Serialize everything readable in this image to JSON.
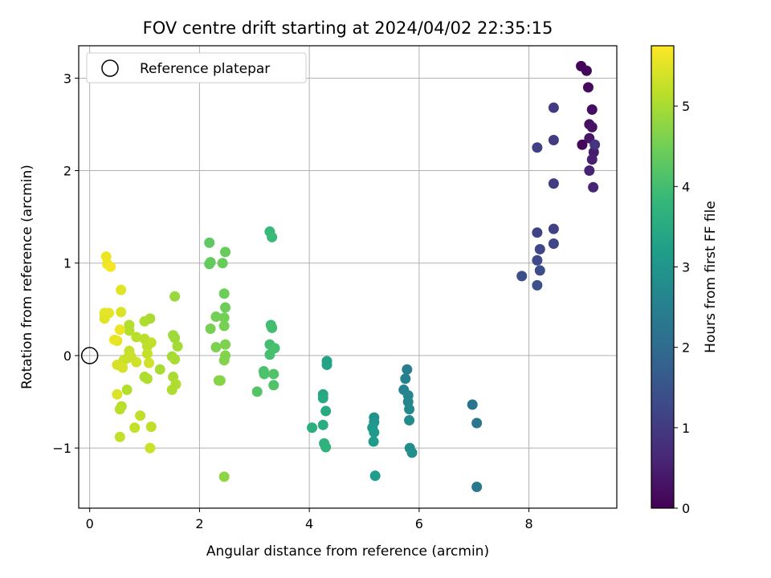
{
  "chart_data": {
    "type": "scatter",
    "title": "FOV centre drift starting at 2024/04/02 22:35:15",
    "xlabel": "Angular distance from reference (arcmin)",
    "ylabel": "Rotation from reference (arcmin)",
    "xlim": [
      -0.2,
      9.6
    ],
    "ylim": [
      -1.65,
      3.35
    ],
    "x_ticks": [
      0,
      2,
      4,
      6,
      8
    ],
    "y_ticks": [
      -1,
      0,
      1,
      2,
      3
    ],
    "x_tick_labels": [
      "0",
      "2",
      "4",
      "6",
      "8"
    ],
    "y_tick_labels": [
      "−1",
      "0",
      "1",
      "2",
      "3"
    ],
    "grid": true,
    "legend": {
      "placement": "top-left",
      "label": "Reference platepar"
    },
    "reference_point": {
      "x": 0,
      "y": 0
    },
    "colorbar": {
      "label": "Hours from first FF file",
      "range": [
        0,
        5.75
      ],
      "ticks": [
        0,
        1,
        2,
        3,
        4,
        5
      ],
      "tick_labels": [
        "0",
        "1",
        "2",
        "3",
        "4",
        "5"
      ],
      "colormap": [
        "#440154",
        "#482878",
        "#3e4989",
        "#31688e",
        "#26828e",
        "#1f9e89",
        "#35b779",
        "#6ece58",
        "#b5de2b",
        "#fde725"
      ]
    },
    "points": [
      {
        "x": 8.95,
        "y": 3.13,
        "h": 0.05
      },
      {
        "x": 9.05,
        "y": 3.08,
        "h": 0.1
      },
      {
        "x": 9.08,
        "y": 2.9,
        "h": 0.15
      },
      {
        "x": 9.15,
        "y": 2.66,
        "h": 0.2
      },
      {
        "x": 9.1,
        "y": 2.5,
        "h": 0.25
      },
      {
        "x": 9.15,
        "y": 2.47,
        "h": 0.3
      },
      {
        "x": 9.1,
        "y": 2.35,
        "h": 0.35
      },
      {
        "x": 8.97,
        "y": 2.28,
        "h": 0.1
      },
      {
        "x": 9.18,
        "y": 2.2,
        "h": 0.45
      },
      {
        "x": 9.15,
        "y": 2.12,
        "h": 0.5
      },
      {
        "x": 9.1,
        "y": 2.0,
        "h": 0.55
      },
      {
        "x": 9.17,
        "y": 1.82,
        "h": 0.6
      },
      {
        "x": 9.2,
        "y": 2.28,
        "h": 0.9
      },
      {
        "x": 8.45,
        "y": 2.68,
        "h": 1.0
      },
      {
        "x": 8.45,
        "y": 2.33,
        "h": 1.05
      },
      {
        "x": 8.15,
        "y": 2.25,
        "h": 1.1
      },
      {
        "x": 8.45,
        "y": 1.86,
        "h": 1.05
      },
      {
        "x": 8.45,
        "y": 1.37,
        "h": 1.1
      },
      {
        "x": 8.15,
        "y": 1.33,
        "h": 1.15
      },
      {
        "x": 8.45,
        "y": 1.21,
        "h": 1.2
      },
      {
        "x": 8.2,
        "y": 1.15,
        "h": 1.25
      },
      {
        "x": 8.15,
        "y": 1.03,
        "h": 1.3
      },
      {
        "x": 8.2,
        "y": 0.92,
        "h": 1.35
      },
      {
        "x": 7.87,
        "y": 0.86,
        "h": 1.4
      },
      {
        "x": 8.15,
        "y": 0.76,
        "h": 1.45
      },
      {
        "x": 6.97,
        "y": -0.53,
        "h": 2.2
      },
      {
        "x": 7.05,
        "y": -0.73,
        "h": 2.25
      },
      {
        "x": 7.05,
        "y": -1.42,
        "h": 2.3
      },
      {
        "x": 5.78,
        "y": -0.15,
        "h": 2.45
      },
      {
        "x": 5.75,
        "y": -0.25,
        "h": 2.5
      },
      {
        "x": 5.72,
        "y": -0.37,
        "h": 2.55
      },
      {
        "x": 5.8,
        "y": -0.43,
        "h": 2.6
      },
      {
        "x": 5.8,
        "y": -0.5,
        "h": 2.65
      },
      {
        "x": 5.82,
        "y": -0.58,
        "h": 2.7
      },
      {
        "x": 5.82,
        "y": -0.7,
        "h": 2.75
      },
      {
        "x": 5.83,
        "y": -1.0,
        "h": 2.8
      },
      {
        "x": 5.87,
        "y": -1.05,
        "h": 2.85
      },
      {
        "x": 5.18,
        "y": -0.67,
        "h": 2.95
      },
      {
        "x": 5.18,
        "y": -0.72,
        "h": 3.0
      },
      {
        "x": 5.15,
        "y": -0.78,
        "h": 3.05
      },
      {
        "x": 5.18,
        "y": -0.83,
        "h": 3.1
      },
      {
        "x": 5.17,
        "y": -0.93,
        "h": 3.15
      },
      {
        "x": 5.2,
        "y": -1.3,
        "h": 3.2
      },
      {
        "x": 4.32,
        "y": -0.06,
        "h": 3.3
      },
      {
        "x": 4.32,
        "y": -0.1,
        "h": 3.35
      },
      {
        "x": 4.25,
        "y": -0.42,
        "h": 3.4
      },
      {
        "x": 4.25,
        "y": -0.46,
        "h": 3.45
      },
      {
        "x": 4.3,
        "y": -0.6,
        "h": 3.5
      },
      {
        "x": 4.25,
        "y": -0.75,
        "h": 3.55
      },
      {
        "x": 4.05,
        "y": -0.78,
        "h": 3.6
      },
      {
        "x": 4.27,
        "y": -0.95,
        "h": 3.65
      },
      {
        "x": 4.3,
        "y": -0.99,
        "h": 3.7
      },
      {
        "x": 3.28,
        "y": 1.34,
        "h": 3.85
      },
      {
        "x": 3.32,
        "y": 1.28,
        "h": 3.9
      },
      {
        "x": 3.3,
        "y": 0.33,
        "h": 3.95
      },
      {
        "x": 3.32,
        "y": 0.3,
        "h": 4.0
      },
      {
        "x": 3.28,
        "y": 0.12,
        "h": 4.0
      },
      {
        "x": 3.37,
        "y": 0.08,
        "h": 4.05
      },
      {
        "x": 3.28,
        "y": 0.01,
        "h": 4.05
      },
      {
        "x": 3.17,
        "y": -0.17,
        "h": 4.1
      },
      {
        "x": 3.18,
        "y": -0.2,
        "h": 4.1
      },
      {
        "x": 3.35,
        "y": -0.2,
        "h": 4.15
      },
      {
        "x": 3.35,
        "y": -0.32,
        "h": 4.15
      },
      {
        "x": 3.05,
        "y": -0.39,
        "h": 4.2
      },
      {
        "x": 2.18,
        "y": 1.22,
        "h": 4.3
      },
      {
        "x": 2.2,
        "y": 1.01,
        "h": 4.35
      },
      {
        "x": 2.18,
        "y": 0.99,
        "h": 4.35
      },
      {
        "x": 2.47,
        "y": 1.12,
        "h": 4.4
      },
      {
        "x": 2.42,
        "y": 1.0,
        "h": 4.4
      },
      {
        "x": 2.45,
        "y": 0.67,
        "h": 4.45
      },
      {
        "x": 2.47,
        "y": 0.52,
        "h": 4.45
      },
      {
        "x": 2.3,
        "y": 0.42,
        "h": 4.5
      },
      {
        "x": 2.45,
        "y": 0.41,
        "h": 4.5
      },
      {
        "x": 2.45,
        "y": 0.32,
        "h": 4.55
      },
      {
        "x": 2.2,
        "y": 0.29,
        "h": 4.55
      },
      {
        "x": 2.47,
        "y": 0.12,
        "h": 4.6
      },
      {
        "x": 2.3,
        "y": 0.09,
        "h": 4.6
      },
      {
        "x": 2.47,
        "y": 0.0,
        "h": 4.65
      },
      {
        "x": 2.45,
        "y": -0.05,
        "h": 4.65
      },
      {
        "x": 2.35,
        "y": -0.27,
        "h": 4.7
      },
      {
        "x": 2.38,
        "y": -0.27,
        "h": 4.7
      },
      {
        "x": 2.45,
        "y": -1.31,
        "h": 4.75
      },
      {
        "x": 1.55,
        "y": 0.64,
        "h": 4.85
      },
      {
        "x": 1.52,
        "y": 0.22,
        "h": 4.9
      },
      {
        "x": 1.55,
        "y": 0.19,
        "h": 4.9
      },
      {
        "x": 1.6,
        "y": 0.1,
        "h": 4.95
      },
      {
        "x": 1.5,
        "y": -0.01,
        "h": 4.95
      },
      {
        "x": 1.55,
        "y": -0.04,
        "h": 5.0
      },
      {
        "x": 1.52,
        "y": -0.23,
        "h": 5.0
      },
      {
        "x": 1.57,
        "y": -0.31,
        "h": 5.05
      },
      {
        "x": 1.5,
        "y": -0.37,
        "h": 5.05
      },
      {
        "x": 1.1,
        "y": 0.4,
        "h": 5.0
      },
      {
        "x": 1.0,
        "y": 0.37,
        "h": 5.05
      },
      {
        "x": 0.72,
        "y": 0.33,
        "h": 5.1
      },
      {
        "x": 0.72,
        "y": 0.27,
        "h": 5.1
      },
      {
        "x": 0.85,
        "y": 0.2,
        "h": 5.15
      },
      {
        "x": 1.0,
        "y": 0.18,
        "h": 5.15
      },
      {
        "x": 1.12,
        "y": 0.14,
        "h": 5.2
      },
      {
        "x": 1.05,
        "y": 0.1,
        "h": 5.2
      },
      {
        "x": 0.72,
        "y": 0.05,
        "h": 5.25
      },
      {
        "x": 1.05,
        "y": 0.02,
        "h": 5.25
      },
      {
        "x": 0.75,
        "y": -0.01,
        "h": 5.3
      },
      {
        "x": 0.68,
        "y": -0.03,
        "h": 5.3
      },
      {
        "x": 0.62,
        "y": -0.05,
        "h": 5.3
      },
      {
        "x": 0.85,
        "y": -0.07,
        "h": 5.35
      },
      {
        "x": 1.08,
        "y": -0.08,
        "h": 5.35
      },
      {
        "x": 0.5,
        "y": -0.1,
        "h": 5.4
      },
      {
        "x": 0.6,
        "y": -0.13,
        "h": 5.4
      },
      {
        "x": 1.28,
        "y": -0.15,
        "h": 5.0
      },
      {
        "x": 1.0,
        "y": -0.23,
        "h": 5.05
      },
      {
        "x": 1.05,
        "y": -0.25,
        "h": 5.05
      },
      {
        "x": 0.68,
        "y": -0.37,
        "h": 5.1
      },
      {
        "x": 0.5,
        "y": -0.42,
        "h": 5.45
      },
      {
        "x": 0.58,
        "y": -0.55,
        "h": 5.1
      },
      {
        "x": 0.55,
        "y": -0.58,
        "h": 5.15
      },
      {
        "x": 0.92,
        "y": -0.65,
        "h": 5.2
      },
      {
        "x": 1.12,
        "y": -0.77,
        "h": 5.2
      },
      {
        "x": 0.82,
        "y": -0.78,
        "h": 5.25
      },
      {
        "x": 0.55,
        "y": -0.88,
        "h": 5.25
      },
      {
        "x": 1.1,
        "y": -1.0,
        "h": 5.3
      },
      {
        "x": 0.3,
        "y": 1.07,
        "h": 5.6
      },
      {
        "x": 0.32,
        "y": 0.99,
        "h": 5.6
      },
      {
        "x": 0.38,
        "y": 0.96,
        "h": 5.65
      },
      {
        "x": 0.57,
        "y": 0.71,
        "h": 5.5
      },
      {
        "x": 0.27,
        "y": 0.46,
        "h": 5.55
      },
      {
        "x": 0.35,
        "y": 0.46,
        "h": 5.55
      },
      {
        "x": 0.57,
        "y": 0.47,
        "h": 5.45
      },
      {
        "x": 0.27,
        "y": 0.4,
        "h": 5.5
      },
      {
        "x": 0.55,
        "y": 0.28,
        "h": 5.6
      },
      {
        "x": 0.45,
        "y": 0.17,
        "h": 5.6
      },
      {
        "x": 0.5,
        "y": 0.16,
        "h": 5.55
      }
    ]
  }
}
